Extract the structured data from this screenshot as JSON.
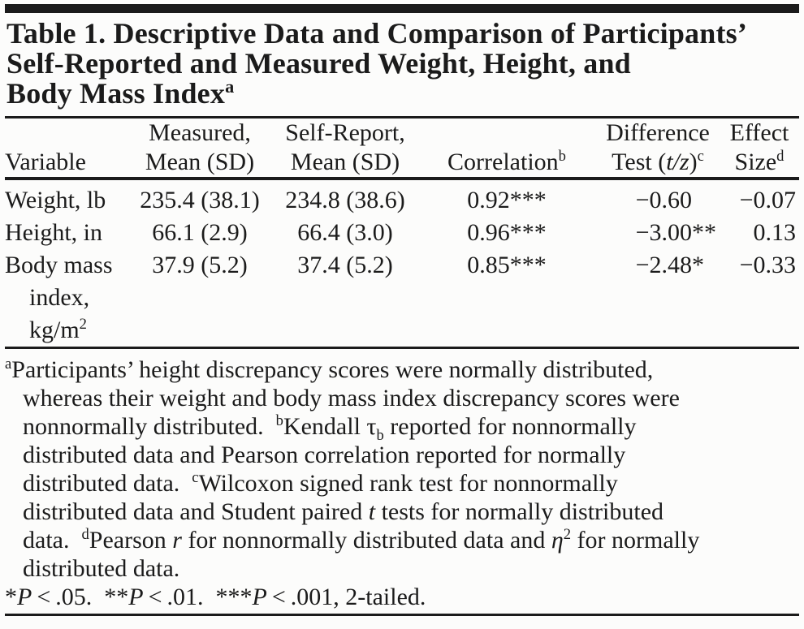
{
  "colors": {
    "ink": "#1b1b1b",
    "background": "#fcfcfb"
  },
  "title_runs": [
    {
      "text": "Table 1. Descriptive Data and Comparison of Participants’"
    },
    {
      "br": true
    },
    {
      "text": "Self-Reported and Measured Weight, Height, and"
    },
    {
      "br": true
    },
    {
      "text": "Body Mass Index"
    },
    {
      "text": "a",
      "style": "sup"
    }
  ],
  "table": {
    "header": {
      "variable": [
        {
          "text": "Variable"
        }
      ],
      "measured": [
        {
          "text": "Measured,"
        },
        {
          "br": true
        },
        {
          "text": "Mean (SD)"
        }
      ],
      "self_report": [
        {
          "text": "Self-Report,"
        },
        {
          "br": true
        },
        {
          "text": "Mean (SD)"
        }
      ],
      "correlation": [
        {
          "text": "Correlation"
        },
        {
          "text": "b",
          "style": "sup"
        }
      ],
      "difference": [
        {
          "text": "Difference"
        },
        {
          "br": true
        },
        {
          "text": "Test ("
        },
        {
          "text": "t/z",
          "style": "italic"
        },
        {
          "text": ")"
        },
        {
          "text": "c",
          "style": "sup"
        }
      ],
      "effect": [
        {
          "text": "Effect"
        },
        {
          "br": true
        },
        {
          "text": "Size"
        },
        {
          "text": "d",
          "style": "sup"
        }
      ]
    },
    "rows": [
      {
        "variable_runs": [
          {
            "text": "Weight, lb"
          }
        ],
        "measured": "235.4 (38.1)",
        "self_report": "234.8 (38.6)",
        "correlation": "0.92***",
        "difference": {
          "value": "−0.60",
          "stars": ""
        },
        "effect": "−0.07"
      },
      {
        "variable_runs": [
          {
            "text": "Height, in"
          }
        ],
        "measured": "66.1 (2.9)",
        "self_report": "66.4 (3.0)",
        "correlation": "0.96***",
        "difference": {
          "value": "−3.00",
          "stars": "**"
        },
        "effect": "0.13"
      },
      {
        "variable_runs": [
          {
            "text": "Body mass"
          },
          {
            "br": true
          },
          {
            "text": "index,",
            "style": "indent-lg"
          },
          {
            "br": true
          },
          {
            "text": "kg/m",
            "style": "indent-lg"
          },
          {
            "text": "2",
            "style": "sup"
          }
        ],
        "measured": "37.9 (5.2)",
        "self_report": "37.4 (5.2)",
        "correlation": "0.85***",
        "difference": {
          "value": "−2.48",
          "stars": "*"
        },
        "effect": "−0.33"
      }
    ]
  },
  "footnotes": {
    "note_runs": [
      {
        "text": "a",
        "style": "sup"
      },
      {
        "text": "Participants’ height discrepancy scores were normally distributed,"
      },
      {
        "br": true
      },
      {
        "text": "whereas their weight and body mass index discrepancy scores were",
        "style": "indent"
      },
      {
        "br": true
      },
      {
        "text": "nonnormally distributed. ",
        "style": "indent"
      },
      {
        "text": "b",
        "style": "sup"
      },
      {
        "text": "Kendall τ"
      },
      {
        "text": "b",
        "style": "sub"
      },
      {
        "text": " reported for nonnormally"
      },
      {
        "br": true
      },
      {
        "text": "distributed data and Pearson correlation reported for normally",
        "style": "indent"
      },
      {
        "br": true
      },
      {
        "text": "distributed data. ",
        "style": "indent"
      },
      {
        "text": "c",
        "style": "sup"
      },
      {
        "text": "Wilcoxon signed rank test for nonnormally"
      },
      {
        "br": true
      },
      {
        "text": "distributed data and Student paired ",
        "style": "indent"
      },
      {
        "text": "t",
        "style": "italic"
      },
      {
        "text": " tests for normally distributed"
      },
      {
        "br": true
      },
      {
        "text": "data. ",
        "style": "indent"
      },
      {
        "text": "d",
        "style": "sup"
      },
      {
        "text": "Pearson "
      },
      {
        "text": "r",
        "style": "italic"
      },
      {
        "text": " for nonnormally distributed data and "
      },
      {
        "text": "η",
        "style": "italic"
      },
      {
        "text": "2",
        "style": "sup"
      },
      {
        "text": " for normally"
      },
      {
        "br": true
      },
      {
        "text": "distributed data.",
        "style": "indent"
      }
    ],
    "significance_runs": [
      {
        "text": "*"
      },
      {
        "text": "P",
        "style": "italic"
      },
      {
        "text": " < .05. "
      },
      {
        "text": "**"
      },
      {
        "text": "P",
        "style": "italic"
      },
      {
        "text": " < .01. "
      },
      {
        "text": "***"
      },
      {
        "text": "P",
        "style": "italic"
      },
      {
        "text": " < .001, 2-tailed."
      }
    ]
  }
}
